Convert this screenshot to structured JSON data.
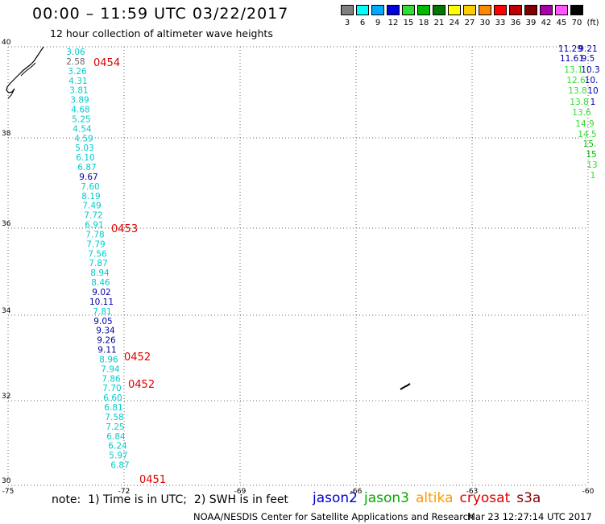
{
  "header": {
    "title": "00:00 – 11:59 UTC 03/22/2017",
    "subtitle": "12 hour collection of altimeter wave heights"
  },
  "legend": {
    "unit": "(ft)",
    "bins": [
      {
        "label": "3",
        "color": "#808080"
      },
      {
        "label": "6",
        "color": "#00ffff"
      },
      {
        "label": "9",
        "color": "#00aaff"
      },
      {
        "label": "12",
        "color": "#0000dd"
      },
      {
        "label": "15",
        "color": "#33dd33"
      },
      {
        "label": "18",
        "color": "#00bb00"
      },
      {
        "label": "21",
        "color": "#007700"
      },
      {
        "label": "24",
        "color": "#ffff00"
      },
      {
        "label": "27",
        "color": "#ffcc00"
      },
      {
        "label": "30",
        "color": "#ff8800"
      },
      {
        "label": "33",
        "color": "#ff0000"
      },
      {
        "label": "36",
        "color": "#bb0000"
      },
      {
        "label": "39",
        "color": "#800000"
      },
      {
        "label": "42",
        "color": "#aa00aa"
      },
      {
        "label": "45",
        "color": "#ff55ff"
      },
      {
        "label": "70",
        "color": "#000000"
      }
    ]
  },
  "axes": {
    "lat_labels": [
      "40",
      "38",
      "36",
      "34",
      "32",
      "30"
    ],
    "lon_labels": [
      "-75",
      "-72",
      "-69",
      "-66",
      "-63",
      "-60"
    ]
  },
  "track_left": {
    "values": [
      "3.06",
      "2.58",
      "3.26",
      "4.31",
      "3.81",
      "3.89",
      "4.68",
      "5.25",
      "4.54",
      "4.59",
      "5.03",
      "6.10",
      "6.87",
      "9.67",
      "7.60",
      "8.19",
      "7.49",
      "7.72",
      "6.91",
      "7.78",
      "7.79",
      "7.56",
      "7.87",
      "8.94",
      "8.46",
      "9.02",
      "10.11",
      "7.81",
      "9.05",
      "9.34",
      "9.26",
      "9.11",
      "8.96",
      "7.94",
      "7.86",
      "7.70",
      "6.60",
      "6.81",
      "7.58",
      "7.25",
      "6.84",
      "6.24",
      "5.97",
      "6.87"
    ],
    "colors": [
      "#00cccc",
      "#666666",
      "#00cccc",
      "#00cccc",
      "#00cccc",
      "#00cccc",
      "#00cccc",
      "#00cccc",
      "#00cccc",
      "#00cccc",
      "#00cccc",
      "#00cccc",
      "#00cccc",
      "#0000aa",
      "#00cccc",
      "#00cccc",
      "#00cccc",
      "#00cccc",
      "#00cccc",
      "#00cccc",
      "#00cccc",
      "#00cccc",
      "#00cccc",
      "#00cccc",
      "#00cccc",
      "#0000aa",
      "#0000aa",
      "#00cccc",
      "#0000aa",
      "#0000aa",
      "#0000aa",
      "#0000aa",
      "#00cccc",
      "#00cccc",
      "#00cccc",
      "#00cccc",
      "#00cccc",
      "#00cccc",
      "#00cccc",
      "#00cccc",
      "#00cccc",
      "#00cccc",
      "#00cccc",
      "#00cccc"
    ]
  },
  "track_right": {
    "values": [
      "11.29",
      "9.21",
      "11.61",
      "9.5",
      "13.1",
      "10.3",
      "12.6",
      "10.",
      "13.8",
      "10",
      "13.8",
      "1",
      "13.6",
      "14.9",
      "14.5",
      "15.",
      "15",
      "13",
      "1"
    ],
    "colors": [
      "#0000aa",
      "#0000aa",
      "#0000aa",
      "#0000aa",
      "#33dd33",
      "#0000aa",
      "#33dd33",
      "#0000aa",
      "#33dd33",
      "#0000aa",
      "#33dd33",
      "#0000aa",
      "#33dd33",
      "#33dd33",
      "#33dd33",
      "#00bb00",
      "#00bb00",
      "#33dd33",
      "#33dd33"
    ]
  },
  "time_labels": [
    "0454",
    "0453",
    "0452",
    "0452",
    "0451"
  ],
  "footer": {
    "note": "note:  1) Time is in UTC;  2) SWH is in feet",
    "credit": "NOAA/NESDIS Center for Satellite Applications and Research",
    "timestamp": "Mar 23 12:27:14 UTC 2017"
  },
  "satellites": [
    {
      "name": "jason2",
      "color": "#0000cc"
    },
    {
      "name": "jason3",
      "color": "#00aa00"
    },
    {
      "name": "altika",
      "color": "#ff9900"
    },
    {
      "name": "cryosat",
      "color": "#dd0000"
    },
    {
      "name": "s3a",
      "color": "#880000"
    }
  ]
}
